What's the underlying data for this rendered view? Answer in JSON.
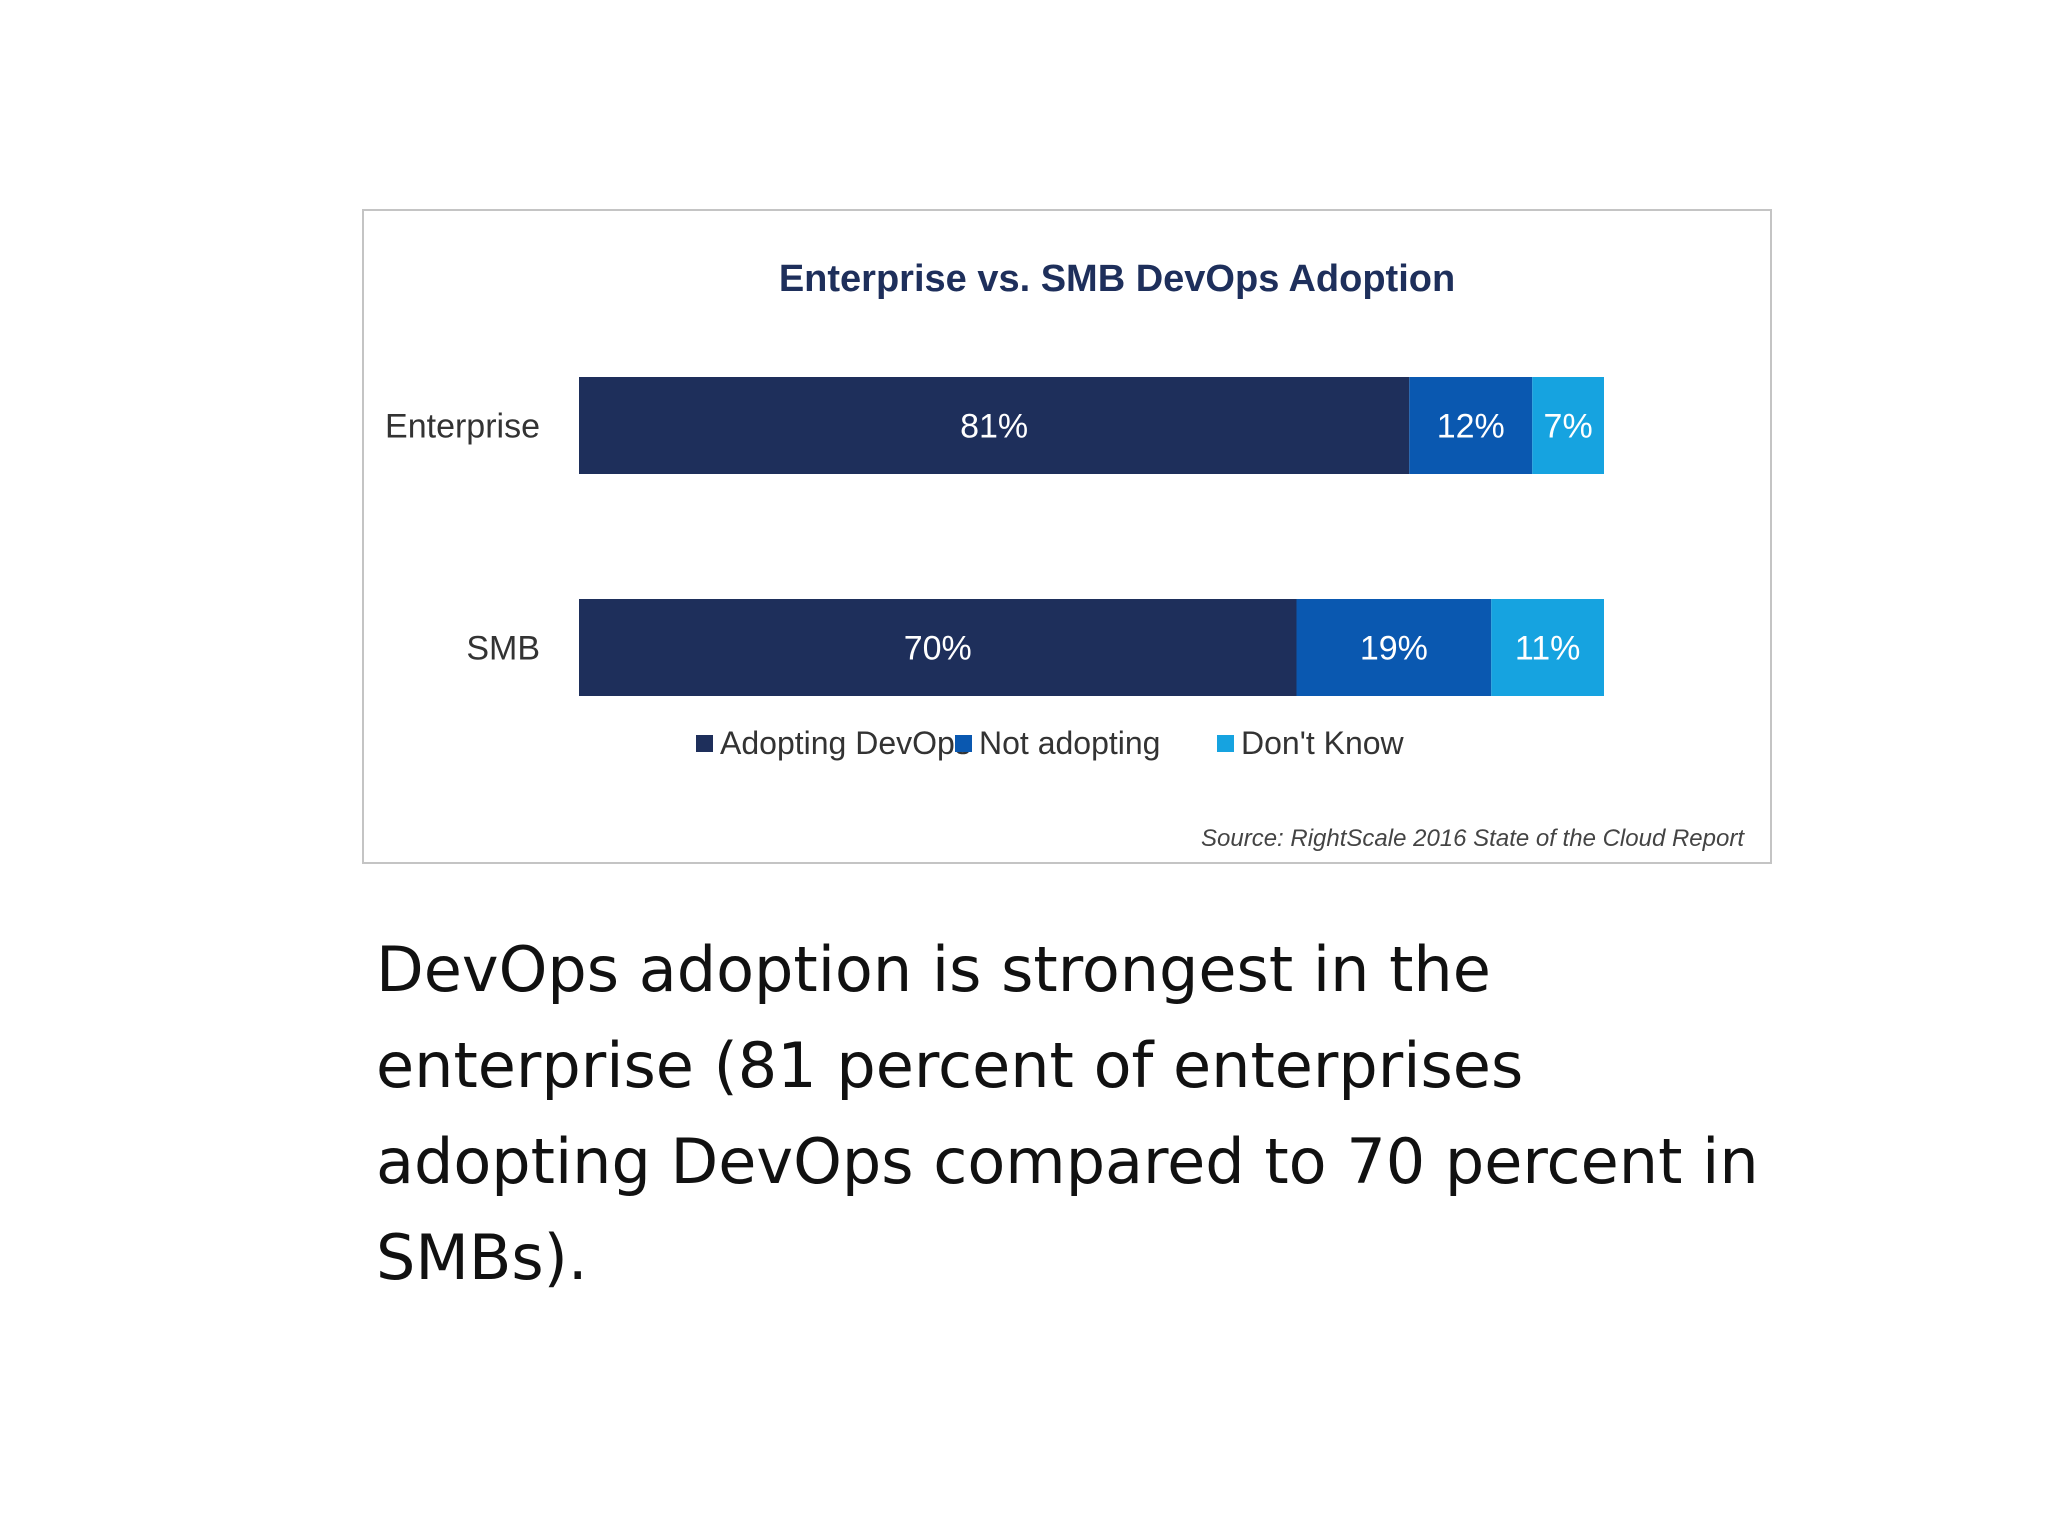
{
  "chart_data": {
    "type": "bar",
    "orientation": "horizontal",
    "stacked": true,
    "title": "Enterprise vs. SMB DevOps Adoption",
    "categories": [
      "Enterprise",
      "SMB"
    ],
    "series": [
      {
        "name": "Adopting DevOps",
        "values": [
          81,
          70
        ],
        "labels": [
          "81%",
          "70%"
        ],
        "color": "#1e2f5b"
      },
      {
        "name": "Not adopting",
        "values": [
          12,
          19
        ],
        "labels": [
          "12%",
          "19%"
        ],
        "color": "#0a58b0"
      },
      {
        "name": "Don't Know",
        "values": [
          7,
          11
        ],
        "labels": [
          "7%",
          "11%"
        ],
        "color": "#16a3e0"
      }
    ],
    "xlim": [
      0,
      100
    ],
    "grid": false,
    "legend_position": "bottom",
    "source": "Source: RightScale 2016 State of the Cloud Report"
  },
  "caption": "DevOps adoption is strongest in the enterprise (81 percent of enterprises adopting DevOps compared to 70 percent in SMBs)."
}
